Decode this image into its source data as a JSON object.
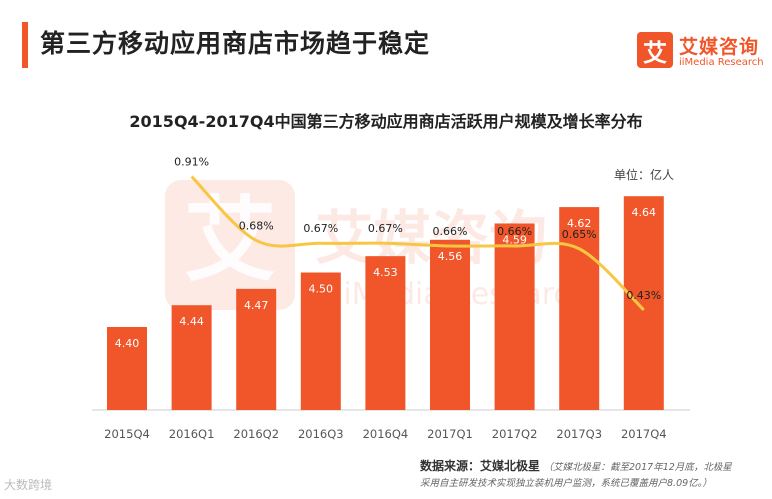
{
  "header": {
    "title": "第三方移动应用商店市场趋于稳定"
  },
  "logo": {
    "mark": "艾",
    "name_cn": "艾媒咨询",
    "name_en": "iiMedia Research"
  },
  "watermark": {
    "mark": "艾",
    "cn": "艾媒咨询",
    "en": "iiMedia Research"
  },
  "unit_label": "单位：亿人",
  "chart_data": {
    "type": "bar",
    "title": "2015Q4-2017Q4中国第三方移动应用商店活跃用户规模及增长率分布",
    "categories": [
      "2015Q4",
      "2016Q1",
      "2016Q2",
      "2016Q3",
      "2016Q4",
      "2017Q1",
      "2017Q2",
      "2017Q3",
      "2017Q4"
    ],
    "series": [
      {
        "name": "活跃用户规模",
        "type": "bar",
        "color": "#f0562a",
        "values": [
          4.4,
          4.44,
          4.47,
          4.5,
          4.53,
          4.56,
          4.59,
          4.62,
          4.64
        ],
        "labels": [
          "4.40",
          "4.44",
          "4.47",
          "4.50",
          "4.53",
          "4.56",
          "4.59",
          "4.62",
          "4.64"
        ]
      },
      {
        "name": "增长率",
        "type": "line",
        "color": "#f7c744",
        "values": [
          null,
          0.91,
          0.68,
          0.67,
          0.67,
          0.66,
          0.66,
          0.65,
          0.43
        ],
        "labels": [
          "",
          "0.91%",
          "0.68%",
          "0.67%",
          "0.67%",
          "0.66%",
          "0.66%",
          "0.65%",
          "0.43%"
        ]
      }
    ],
    "xlabel": "",
    "ylabel": ""
  },
  "footer": {
    "source_label": "数据来源：艾媒北极星",
    "note_line1": "（艾媒北极星：截至2017年12月底，北极星",
    "note_line2": "采用自主研发技术实现独立装机用户监测，系统已覆盖用户8.09亿。）"
  },
  "corner_mark": "大数跨境"
}
